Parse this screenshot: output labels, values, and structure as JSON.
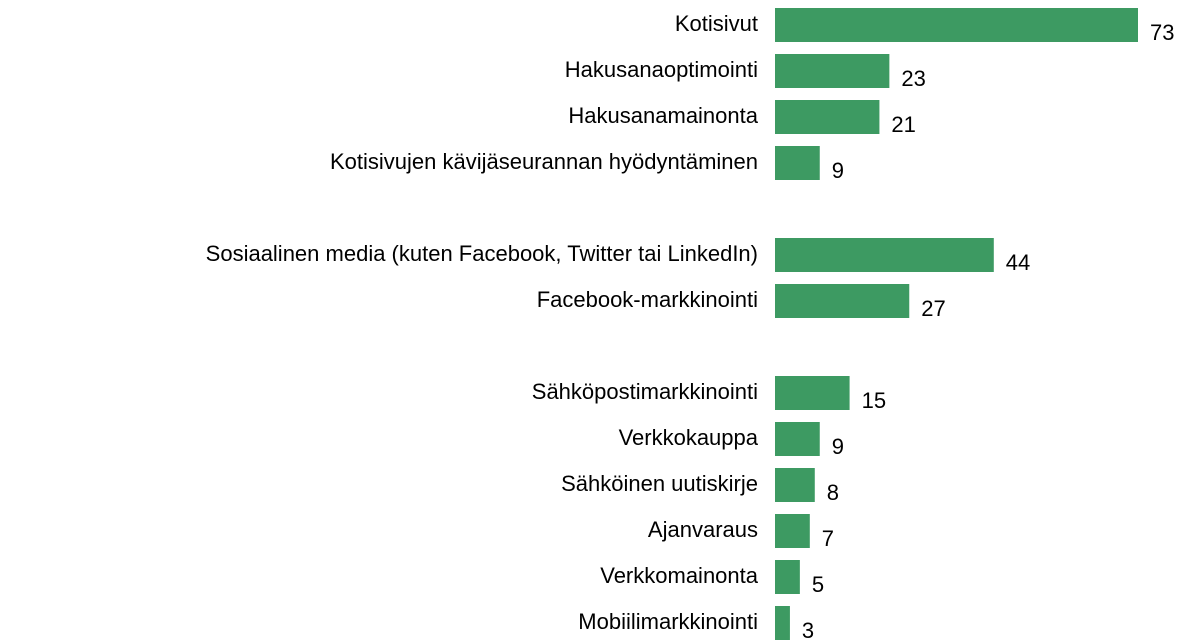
{
  "chart_data": {
    "type": "hbar",
    "color": "#3d9a62",
    "categories": [
      "Kotisivut",
      "Hakusanaoptimointi",
      "Hakusanamainonta",
      "Kotisivujen kävijäseurannan hyödyntäminen",
      null,
      "Sosiaalinen media (kuten Facebook, Twitter tai LinkedIn)",
      "Facebook-markkinointi",
      null,
      "Sähköpostimarkkinointi",
      "Verkkokauppa",
      "Sähköinen uutiskirje",
      "Ajanvaraus",
      "Verkkomainonta",
      "Mobiilimarkkinointi"
    ],
    "values": [
      73,
      23,
      21,
      9,
      null,
      44,
      27,
      null,
      15,
      9,
      8,
      7,
      5,
      3
    ]
  }
}
